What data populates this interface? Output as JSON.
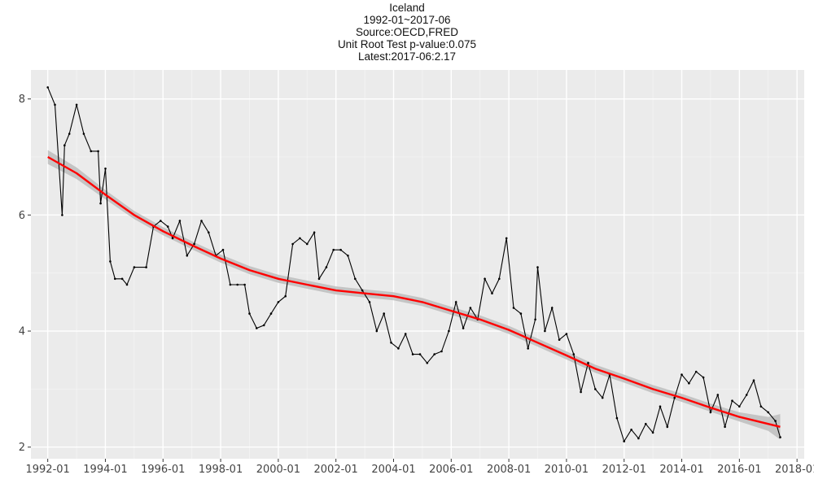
{
  "title_lines": [
    "Iceland",
    "1992-01~2017-06",
    "Source:OECD,FRED",
    "Unit Root Test p-value:0.075",
    "Latest:2017-06:2.17"
  ],
  "colors": {
    "panel": "#ebebeb",
    "grid_major": "#ffffff",
    "grid_minor": "#f4f4f4",
    "series": "#000000",
    "trend": "#ff0000",
    "band": "#bdbdbd"
  },
  "chart_data": {
    "type": "line",
    "title": "Iceland",
    "subtitle": [
      "1992-01~2017-06",
      "Source:OECD,FRED",
      "Unit Root Test p-value:0.075",
      "Latest:2017-06:2.17"
    ],
    "xlabel": "",
    "ylabel": "",
    "xlim": [
      "1991-06",
      "2018-04"
    ],
    "ylim": [
      1.8,
      8.5
    ],
    "x_ticks": [
      "1992-01",
      "1994-01",
      "1996-01",
      "1998-01",
      "2000-01",
      "2002-01",
      "2004-01",
      "2006-01",
      "2008-01",
      "2010-01",
      "2012-01",
      "2014-01",
      "2016-01",
      "2018-01"
    ],
    "y_ticks": [
      2,
      4,
      6,
      8
    ],
    "grid": true,
    "series": [
      {
        "points": [
          [
            "1992-01",
            8.2
          ],
          [
            "1992-04",
            7.9
          ],
          [
            "1992-07",
            6.0
          ],
          [
            "1992-08",
            7.2
          ],
          [
            "1992-10",
            7.4
          ],
          [
            "1993-01",
            7.9
          ],
          [
            "1993-04",
            7.4
          ],
          [
            "1993-07",
            7.1
          ],
          [
            "1993-10",
            7.1
          ],
          [
            "1993-11",
            6.2
          ],
          [
            "1994-01",
            6.8
          ],
          [
            "1994-03",
            5.2
          ],
          [
            "1994-05",
            4.9
          ],
          [
            "1994-08",
            4.9
          ],
          [
            "1994-10",
            4.8
          ],
          [
            "1995-01",
            5.1
          ],
          [
            "1995-06",
            5.1
          ],
          [
            "1995-09",
            5.8
          ],
          [
            "1995-12",
            5.9
          ],
          [
            "1996-03",
            5.8
          ],
          [
            "1996-05",
            5.6
          ],
          [
            "1996-08",
            5.9
          ],
          [
            "1996-11",
            5.3
          ],
          [
            "1997-02",
            5.5
          ],
          [
            "1997-05",
            5.9
          ],
          [
            "1997-08",
            5.7
          ],
          [
            "1997-11",
            5.3
          ],
          [
            "1998-02",
            5.4
          ],
          [
            "1998-05",
            4.8
          ],
          [
            "1998-08",
            4.8
          ],
          [
            "1998-11",
            4.8
          ],
          [
            "1999-01",
            4.3
          ],
          [
            "1999-04",
            4.05
          ],
          [
            "1999-07",
            4.1
          ],
          [
            "1999-10",
            4.3
          ],
          [
            "2000-01",
            4.5
          ],
          [
            "2000-04",
            4.6
          ],
          [
            "2000-07",
            5.5
          ],
          [
            "2000-10",
            5.6
          ],
          [
            "2001-01",
            5.5
          ],
          [
            "2001-04",
            5.7
          ],
          [
            "2001-06",
            4.9
          ],
          [
            "2001-09",
            5.1
          ],
          [
            "2001-12",
            5.4
          ],
          [
            "2002-03",
            5.4
          ],
          [
            "2002-06",
            5.3
          ],
          [
            "2002-09",
            4.9
          ],
          [
            "2002-12",
            4.7
          ],
          [
            "2003-03",
            4.5
          ],
          [
            "2003-06",
            4.0
          ],
          [
            "2003-09",
            4.3
          ],
          [
            "2003-12",
            3.8
          ],
          [
            "2004-03",
            3.7
          ],
          [
            "2004-06",
            3.95
          ],
          [
            "2004-09",
            3.6
          ],
          [
            "2004-12",
            3.6
          ],
          [
            "2005-03",
            3.45
          ],
          [
            "2005-06",
            3.6
          ],
          [
            "2005-09",
            3.65
          ],
          [
            "2005-12",
            4.0
          ],
          [
            "2006-03",
            4.5
          ],
          [
            "2006-06",
            4.05
          ],
          [
            "2006-09",
            4.4
          ],
          [
            "2006-12",
            4.2
          ],
          [
            "2007-03",
            4.9
          ],
          [
            "2007-06",
            4.65
          ],
          [
            "2007-09",
            4.9
          ],
          [
            "2007-12",
            5.6
          ],
          [
            "2008-03",
            4.4
          ],
          [
            "2008-06",
            4.3
          ],
          [
            "2008-09",
            3.7
          ],
          [
            "2008-12",
            4.2
          ],
          [
            "2009-01",
            5.1
          ],
          [
            "2009-04",
            4.0
          ],
          [
            "2009-07",
            4.4
          ],
          [
            "2009-10",
            3.85
          ],
          [
            "2010-01",
            3.95
          ],
          [
            "2010-04",
            3.6
          ],
          [
            "2010-07",
            2.95
          ],
          [
            "2010-10",
            3.45
          ],
          [
            "2011-01",
            3.0
          ],
          [
            "2011-04",
            2.85
          ],
          [
            "2011-07",
            3.25
          ],
          [
            "2011-10",
            2.5
          ],
          [
            "2012-01",
            2.1
          ],
          [
            "2012-04",
            2.3
          ],
          [
            "2012-07",
            2.15
          ],
          [
            "2012-10",
            2.4
          ],
          [
            "2013-01",
            2.25
          ],
          [
            "2013-04",
            2.7
          ],
          [
            "2013-07",
            2.35
          ],
          [
            "2013-10",
            2.85
          ],
          [
            "2014-01",
            3.25
          ],
          [
            "2014-04",
            3.1
          ],
          [
            "2014-07",
            3.3
          ],
          [
            "2014-10",
            3.2
          ],
          [
            "2015-01",
            2.6
          ],
          [
            "2015-04",
            2.9
          ],
          [
            "2015-07",
            2.35
          ],
          [
            "2015-10",
            2.8
          ],
          [
            "2016-01",
            2.7
          ],
          [
            "2016-04",
            2.9
          ],
          [
            "2016-07",
            3.15
          ],
          [
            "2016-10",
            2.7
          ],
          [
            "2017-01",
            2.6
          ],
          [
            "2017-04",
            2.45
          ],
          [
            "2017-06",
            2.17
          ]
        ]
      },
      {
        "type": "smooth",
        "points": [
          [
            "1992-01",
            7.0
          ],
          [
            "1993-01",
            6.72
          ],
          [
            "1994-01",
            6.35
          ],
          [
            "1995-01",
            6.0
          ],
          [
            "1996-01",
            5.72
          ],
          [
            "1997-01",
            5.48
          ],
          [
            "1998-01",
            5.25
          ],
          [
            "1999-01",
            5.05
          ],
          [
            "2000-01",
            4.9
          ],
          [
            "2001-01",
            4.8
          ],
          [
            "2002-01",
            4.7
          ],
          [
            "2003-01",
            4.65
          ],
          [
            "2004-01",
            4.6
          ],
          [
            "2005-01",
            4.5
          ],
          [
            "2006-01",
            4.35
          ],
          [
            "2007-01",
            4.2
          ],
          [
            "2008-01",
            4.02
          ],
          [
            "2009-01",
            3.8
          ],
          [
            "2010-01",
            3.58
          ],
          [
            "2011-01",
            3.35
          ],
          [
            "2012-01",
            3.18
          ],
          [
            "2013-01",
            3.0
          ],
          [
            "2014-01",
            2.85
          ],
          [
            "2015-01",
            2.68
          ],
          [
            "2016-01",
            2.52
          ],
          [
            "2017-01",
            2.4
          ],
          [
            "2017-06",
            2.35
          ]
        ],
        "band_halfwidth": [
          0.12,
          0.1,
          0.08,
          0.07,
          0.07,
          0.07,
          0.07,
          0.07,
          0.07,
          0.07,
          0.07,
          0.07,
          0.07,
          0.07,
          0.07,
          0.07,
          0.07,
          0.07,
          0.07,
          0.07,
          0.07,
          0.07,
          0.07,
          0.07,
          0.08,
          0.12,
          0.22
        ]
      }
    ]
  }
}
